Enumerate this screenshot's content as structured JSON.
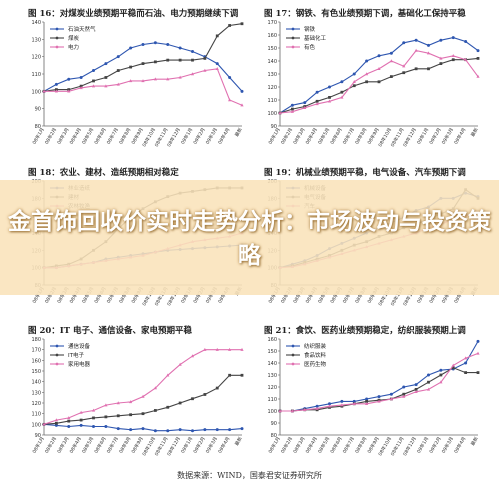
{
  "headline": "金首饰回收价实时走势分析：市场波动与投资策略",
  "source_note": "数据来源：WIND，国泰君安证券研究所",
  "chart_data": [
    {
      "type": "line",
      "title": "图 16：对煤炭业绩预期平稳而石油、电力预期继续下调",
      "categories": [
        "08年1月",
        "08年2月",
        "08年3月",
        "08年4月",
        "08年5月",
        "08年6月",
        "08年7月",
        "08年8月",
        "08年9月",
        "08年10月",
        "08年11月",
        "08年12月",
        "09年1月",
        "09年2月",
        "09年3月",
        "09年4月",
        "最新"
      ],
      "ylim": [
        80,
        140
      ],
      "yticks": [
        80,
        90,
        100,
        110,
        120,
        130,
        140
      ],
      "series": [
        {
          "name": "石油天然气",
          "color": "#2e56b0",
          "values": [
            100,
            104,
            107,
            108,
            112,
            116,
            120,
            125,
            127,
            128,
            127,
            125,
            123,
            120,
            116,
            108,
            100
          ]
        },
        {
          "name": "煤炭",
          "color": "#444444",
          "values": [
            100,
            101,
            101,
            103,
            106,
            108,
            112,
            114,
            116,
            117,
            118,
            118,
            118,
            119,
            132,
            138,
            139
          ]
        },
        {
          "name": "电力",
          "color": "#e070b0",
          "values": [
            100,
            100,
            100,
            102,
            103,
            103,
            104,
            106,
            106,
            107,
            107,
            108,
            110,
            112,
            113,
            95,
            92
          ]
        }
      ]
    },
    {
      "type": "line",
      "title": "图 17：钢铁、有色业绩预期下调，基础化工保持平稳",
      "categories": [
        "08年1月",
        "08年2月",
        "08年3月",
        "08年4月",
        "08年5月",
        "08年6月",
        "08年7月",
        "08年8月",
        "08年9月",
        "08年10月",
        "08年11月",
        "08年12月",
        "09年1月",
        "09年2月",
        "09年3月",
        "09年4月",
        "最新"
      ],
      "ylim": [
        90,
        170
      ],
      "yticks": [
        90,
        100,
        110,
        120,
        130,
        140,
        150,
        160,
        170
      ],
      "series": [
        {
          "name": "钢铁",
          "color": "#2e56b0",
          "values": [
            100,
            106,
            108,
            116,
            120,
            124,
            130,
            140,
            144,
            146,
            154,
            156,
            152,
            156,
            158,
            155,
            148
          ]
        },
        {
          "name": "基础化工",
          "color": "#444444",
          "values": [
            100,
            103,
            105,
            109,
            112,
            116,
            121,
            124,
            124,
            128,
            131,
            134,
            134,
            138,
            141,
            141,
            142
          ]
        },
        {
          "name": "有色",
          "color": "#e070b0",
          "values": [
            100,
            101,
            104,
            107,
            109,
            112,
            124,
            130,
            134,
            140,
            136,
            148,
            146,
            142,
            144,
            141,
            128
          ]
        }
      ]
    },
    {
      "type": "line",
      "title": "图 18：农业、建材、造纸预期相对稳定",
      "categories": [
        "08年1月",
        "08年2月",
        "08年3月",
        "08年4月",
        "08年5月",
        "08年6月",
        "08年7月",
        "08年8月",
        "08年9月",
        "08年10月",
        "08年11月",
        "08年12月",
        "09年1月",
        "09年2月",
        "09年3月",
        "09年4月",
        "最新"
      ],
      "ylim": [
        80,
        200
      ],
      "yticks": [
        80,
        100,
        120,
        140,
        160,
        180,
        200
      ],
      "series": [
        {
          "name": "林业造纸",
          "color": "#2e56b0",
          "values": [
            100,
            100,
            102,
            104,
            106,
            110,
            112,
            114,
            116,
            118,
            120,
            121,
            122,
            123,
            124,
            125,
            126
          ]
        },
        {
          "name": "建材",
          "color": "#444444",
          "values": [
            100,
            102,
            104,
            110,
            120,
            130,
            145,
            158,
            168,
            176,
            182,
            186,
            188,
            190,
            192,
            192,
            192
          ]
        },
        {
          "name": "农林牧渔",
          "color": "#e070b0",
          "values": [
            100,
            100,
            102,
            104,
            106,
            108,
            110,
            112,
            114,
            118,
            122,
            126,
            130,
            132,
            134,
            136,
            140
          ]
        }
      ]
    },
    {
      "type": "line",
      "title": "图 19：机械业绩预期平稳，电气设备、汽车预期下调",
      "categories": [
        "08年1月",
        "08年2月",
        "08年3月",
        "08年4月",
        "08年5月",
        "08年6月",
        "08年7月",
        "08年8月",
        "08年9月",
        "08年10月",
        "08年11月",
        "08年12月",
        "09年1月",
        "09年2月",
        "09年3月",
        "09年4月",
        "最新"
      ],
      "ylim": [
        80,
        200
      ],
      "yticks": [
        80,
        100,
        120,
        140,
        160,
        180,
        200
      ],
      "series": [
        {
          "name": "机械设备",
          "color": "#2e56b0",
          "values": [
            100,
            104,
            108,
            114,
            122,
            128,
            134,
            140,
            146,
            152,
            158,
            166,
            170,
            180,
            180,
            186,
            182
          ]
        },
        {
          "name": "电气设备",
          "color": "#444444",
          "values": [
            100,
            102,
            106,
            110,
            114,
            120,
            126,
            130,
            136,
            140,
            146,
            150,
            156,
            162,
            168,
            190,
            180
          ]
        },
        {
          "name": "汽车",
          "color": "#e070b0",
          "values": [
            100,
            101,
            104,
            108,
            112,
            116,
            120,
            124,
            128,
            132,
            136,
            140,
            146,
            150,
            156,
            160,
            164
          ]
        }
      ]
    },
    {
      "type": "line",
      "title": "图 20：IT 电子、通信设备、家电预期平稳",
      "categories": [
        "08年1月",
        "08年2月",
        "08年3月",
        "08年4月",
        "08年5月",
        "08年6月",
        "08年7月",
        "08年8月",
        "08年9月",
        "08年10月",
        "08年11月",
        "08年12月",
        "09年1月",
        "09年2月",
        "09年3月",
        "09年4月",
        "最新"
      ],
      "ylim": [
        90,
        180
      ],
      "yticks": [
        90,
        100,
        110,
        120,
        130,
        140,
        150,
        160,
        170,
        180
      ],
      "series": [
        {
          "name": "通信设备",
          "color": "#2e56b0",
          "values": [
            100,
            99,
            98,
            99,
            98,
            98,
            96,
            95,
            96,
            94,
            94,
            95,
            94,
            95,
            95,
            95,
            96
          ]
        },
        {
          "name": "IT电子",
          "color": "#444444",
          "values": [
            100,
            101,
            103,
            104,
            106,
            107,
            108,
            109,
            110,
            113,
            116,
            120,
            124,
            128,
            134,
            146,
            146
          ]
        },
        {
          "name": "家用电器",
          "color": "#e070b0",
          "values": [
            100,
            104,
            106,
            111,
            113,
            118,
            120,
            121,
            126,
            134,
            146,
            156,
            164,
            170,
            170,
            170,
            170
          ]
        }
      ]
    },
    {
      "type": "line",
      "title": "图 21：食饮、医药业绩预期稳定，纺织服装预期上调",
      "categories": [
        "08年1月",
        "08年2月",
        "08年3月",
        "08年4月",
        "08年5月",
        "08年6月",
        "08年7月",
        "08年8月",
        "08年9月",
        "08年10月",
        "08年11月",
        "08年12月",
        "09年1月",
        "09年2月",
        "09年3月",
        "09年4月",
        "最新"
      ],
      "ylim": [
        80,
        160
      ],
      "yticks": [
        80,
        90,
        100,
        110,
        120,
        130,
        140,
        150,
        160
      ],
      "series": [
        {
          "name": "纺织服装",
          "color": "#2e56b0",
          "values": [
            100,
            100,
            102,
            104,
            106,
            108,
            108,
            110,
            112,
            114,
            120,
            122,
            130,
            134,
            135,
            140,
            158
          ]
        },
        {
          "name": "食品饮料",
          "color": "#444444",
          "values": [
            100,
            100,
            101,
            101,
            103,
            104,
            106,
            108,
            109,
            110,
            114,
            118,
            124,
            130,
            136,
            132,
            132
          ]
        },
        {
          "name": "医药生物",
          "color": "#e070b0",
          "values": [
            100,
            100,
            101,
            102,
            104,
            105,
            106,
            106,
            108,
            110,
            112,
            116,
            118,
            124,
            138,
            144,
            148
          ]
        }
      ]
    }
  ]
}
